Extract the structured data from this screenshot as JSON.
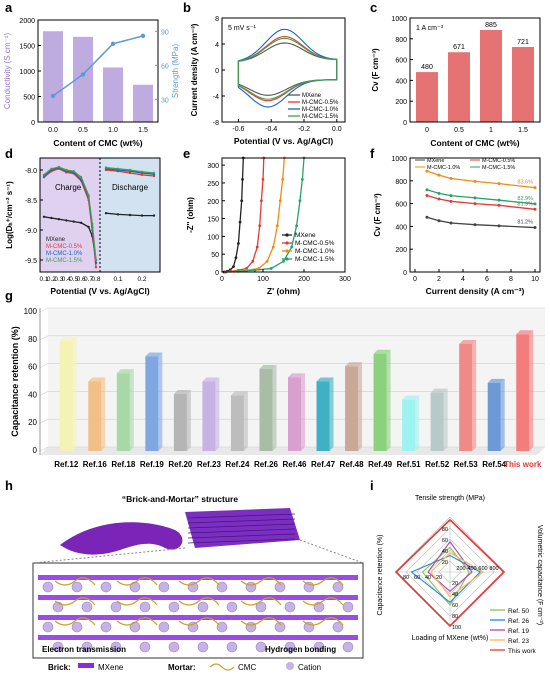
{
  "panel_labels": [
    "a",
    "b",
    "c",
    "d",
    "e",
    "f",
    "g",
    "h",
    "i"
  ],
  "chart_data": [
    {
      "id": "a",
      "type": "bar+line",
      "xlabel": "Content of CMC (wt%)",
      "ylabel": "Conductivity (S cm⁻¹)",
      "y2label": "Strength (MPa)",
      "categories": [
        "0.0",
        "0.5",
        "1.0",
        "1.5"
      ],
      "ylim": [
        0,
        2000
      ],
      "yticks": [
        "0",
        "500",
        "1000",
        "1500",
        "2000"
      ],
      "y2lim": [
        10,
        100
      ],
      "y2ticks": [
        "30",
        "60",
        "90"
      ],
      "series": [
        {
          "kind": "bar",
          "values": [
            1780,
            1670,
            1070,
            730
          ],
          "color": "#b39ddb"
        },
        {
          "kind": "line",
          "values": [
            33,
            52,
            79,
            86
          ],
          "color": "#5b9bd5"
        }
      ]
    },
    {
      "id": "b",
      "type": "line",
      "annotation": "5 mV s⁻¹",
      "xlabel": "Potential (V vs. Ag/AgCl)",
      "ylabel": "Current density (A cm⁻³)",
      "xlim": [
        -0.7,
        0.05
      ],
      "ylim": [
        -8,
        8
      ],
      "xticks": [
        "-0.6",
        "-0.4",
        "-0.2",
        "0.0"
      ],
      "yticks": [
        "-8",
        "-4",
        "0",
        "4",
        "8"
      ],
      "legend": [
        "MXene",
        "M-CMC-0.5%",
        "M-CMC-1.0%",
        "M-CMC-1.5%"
      ],
      "colors": [
        "#555555",
        "#e53935",
        "#1565c0",
        "#43a047"
      ],
      "peak_scale": [
        4.0,
        5.4,
        7.0,
        5.0
      ]
    },
    {
      "id": "c",
      "type": "bar",
      "annotation": "1 A cm⁻³",
      "xlabel": "Content of CMC (wt%)",
      "ylabel": "Cv (F cm⁻³)",
      "categories": [
        "0",
        "0.5",
        "1",
        "1.5"
      ],
      "values": [
        480,
        671,
        885,
        721
      ],
      "labels": [
        "480",
        "671",
        "885",
        "721"
      ],
      "ylim": [
        0,
        1000
      ],
      "yticks": [
        "0",
        "200",
        "400",
        "600",
        "800",
        "1000"
      ],
      "color": "#e57373"
    },
    {
      "id": "d",
      "type": "line",
      "xlabel": "Potential (V vs. Ag/AgCl)",
      "ylabel": "Log(Dₕ⁺/cm⁻² s⁻¹)",
      "ylim": [
        -9.7,
        -7.8
      ],
      "yticks": [
        "-8.0",
        "-8.5",
        "-9.0",
        "-9.5"
      ],
      "charge_xticks": [
        "0.1",
        "0.2",
        "0.3",
        "0.4",
        "0.5",
        "0.6",
        "0.7",
        "0.8"
      ],
      "discharge_xticks": [
        "0.1",
        "0.2"
      ],
      "charge_label": "Charge",
      "discharge_label": "Discharge",
      "legend": [
        "MXene",
        "M-CMC-0.5%",
        "M-CMC-1.0%",
        "M-CMC-1.5%"
      ],
      "colors": [
        "#222222",
        "#e53935",
        "#1565c0",
        "#43a047"
      ],
      "charge_bg": "#e1d1f1",
      "discharge_bg": "#d2e2f1",
      "charge": [
        {
          "x": [
            0.1,
            0.2,
            0.3,
            0.4,
            0.5,
            0.6,
            0.7,
            0.75,
            0.8
          ],
          "y": [
            -8.78,
            -8.8,
            -8.82,
            -8.84,
            -8.86,
            -8.88,
            -8.95,
            -9.1,
            -9.5
          ]
        },
        {
          "x": [
            0.1,
            0.2,
            0.3,
            0.4,
            0.5,
            0.6,
            0.7,
            0.75,
            0.8
          ],
          "y": [
            -8.12,
            -8.02,
            -7.98,
            -8.04,
            -8.06,
            -8.18,
            -8.5,
            -9.0,
            -9.62
          ]
        },
        {
          "x": [
            0.1,
            0.2,
            0.3,
            0.4,
            0.5,
            0.6,
            0.7,
            0.75,
            0.8
          ],
          "y": [
            -8.1,
            -8.0,
            -7.96,
            -8.02,
            -8.04,
            -8.16,
            -8.45,
            -8.95,
            -9.55
          ]
        },
        {
          "x": [
            0.1,
            0.2,
            0.3,
            0.4,
            0.5,
            0.6,
            0.7,
            0.75,
            0.8
          ],
          "y": [
            -8.08,
            -7.98,
            -7.95,
            -8.0,
            -8.02,
            -8.12,
            -8.42,
            -8.9,
            -9.5
          ]
        }
      ],
      "discharge": [
        {
          "x": [
            0.05,
            0.1,
            0.15,
            0.2,
            0.25
          ],
          "y": [
            -8.72,
            -8.74,
            -8.75,
            -8.76,
            -8.76
          ]
        },
        {
          "x": [
            0.05,
            0.1,
            0.15,
            0.2,
            0.25
          ],
          "y": [
            -8.0,
            -8.02,
            -8.05,
            -8.08,
            -8.1
          ]
        },
        {
          "x": [
            0.05,
            0.1,
            0.15,
            0.2,
            0.25
          ],
          "y": [
            -7.98,
            -8.0,
            -8.02,
            -8.05,
            -8.07
          ]
        },
        {
          "x": [
            0.05,
            0.1,
            0.15,
            0.2,
            0.25
          ],
          "y": [
            -7.96,
            -7.98,
            -8.0,
            -8.03,
            -8.05
          ]
        }
      ]
    },
    {
      "id": "e",
      "type": "line",
      "xlabel": "Z' (ohm)",
      "ylabel": "-Z'' (ohm)",
      "xlim": [
        0,
        300
      ],
      "ylim": [
        0,
        320
      ],
      "xticks": [
        "0",
        "100",
        "200",
        "300"
      ],
      "yticks": [
        "0",
        "50",
        "100",
        "150",
        "200",
        "250",
        "300"
      ],
      "legend": [
        "MXene",
        "M-CMC-0.5%",
        "M-CMC-1.0%",
        "M-CMC-1.5%"
      ],
      "colors": [
        "#222222",
        "#e53935",
        "#ef8a17",
        "#26a269"
      ],
      "series": [
        {
          "x": [
            5,
            12,
            20,
            28,
            34,
            40,
            44,
            48,
            50,
            52
          ],
          "y": [
            0,
            2,
            6,
            15,
            40,
            80,
            140,
            200,
            260,
            320
          ]
        },
        {
          "x": [
            8,
            20,
            40,
            60,
            75,
            86,
            92,
            96,
            100,
            102
          ],
          "y": [
            0,
            2,
            5,
            10,
            30,
            70,
            130,
            200,
            260,
            320
          ]
        },
        {
          "x": [
            10,
            30,
            60,
            90,
            110,
            125,
            135,
            142,
            148,
            152
          ],
          "y": [
            0,
            2,
            5,
            10,
            30,
            70,
            130,
            200,
            260,
            320
          ]
        },
        {
          "x": [
            10,
            40,
            80,
            120,
            150,
            170,
            182,
            190,
            196,
            200
          ],
          "y": [
            0,
            2,
            5,
            10,
            30,
            70,
            130,
            200,
            260,
            320
          ]
        }
      ]
    },
    {
      "id": "f",
      "type": "line",
      "xlabel": "Current density (A cm⁻³)",
      "ylabel": "Cv (F cm⁻³)",
      "xlim": [
        0,
        10
      ],
      "ylim": [
        0,
        1000
      ],
      "xticks": [
        "0",
        "2",
        "4",
        "6",
        "8",
        "10"
      ],
      "yticks": [
        "0",
        "200",
        "400",
        "600",
        "800",
        "1000"
      ],
      "legend": [
        "MXene",
        "M-CMC-0.5%",
        "M-CMC-1.0%",
        "M-CMC-1.5%"
      ],
      "colors": [
        "#444444",
        "#e53935",
        "#ef8a17",
        "#26a269"
      ],
      "retention_labels": [
        "81.2%",
        "81.9%",
        "83.6%",
        "82.9%"
      ],
      "series": [
        {
          "x": [
            1,
            2,
            3,
            5,
            7,
            10
          ],
          "y": [
            480,
            450,
            430,
            415,
            405,
            390
          ]
        },
        {
          "x": [
            1,
            2,
            3,
            5,
            7,
            10
          ],
          "y": [
            671,
            640,
            620,
            600,
            585,
            550
          ]
        },
        {
          "x": [
            1,
            2,
            3,
            5,
            7,
            10
          ],
          "y": [
            885,
            850,
            820,
            795,
            775,
            740
          ]
        },
        {
          "x": [
            1,
            2,
            3,
            5,
            7,
            10
          ],
          "y": [
            721,
            690,
            670,
            650,
            630,
            598
          ]
        }
      ]
    },
    {
      "id": "g",
      "type": "bar",
      "ylabel": "Capacitance retention (%)",
      "ylim": [
        0,
        100
      ],
      "yticks": [
        "0",
        "20",
        "40",
        "60",
        "80",
        "100"
      ],
      "categories": [
        "Ref.12",
        "Ref.16",
        "Ref.18",
        "Ref.19",
        "Ref.20",
        "Ref.23",
        "Ref.24",
        "Ref.26",
        "Ref.46",
        "Ref.47",
        "Ref.48",
        "Ref.49",
        "Ref.51",
        "Ref.52",
        "Ref.53",
        "Ref.54",
        "This work"
      ],
      "values": [
        79,
        50,
        56,
        68,
        41,
        50,
        40,
        59,
        53,
        50,
        61,
        70,
        37,
        42,
        77,
        49,
        84
      ],
      "colors": [
        "#f5f3b4",
        "#f2bf86",
        "#a8d8a8",
        "#7fa8e3",
        "#b5b5b5",
        "#c7b2e6",
        "#bdbdbd",
        "#a8bca6",
        "#d9a0cf",
        "#3eb2c2",
        "#c9a898",
        "#8cd17d",
        "#9ef2f0",
        "#b8c9c8",
        "#f08a86",
        "#6b9ad6",
        "#f37d7d"
      ],
      "highlight_label_color": "#e53935"
    },
    {
      "id": "i",
      "type": "radar",
      "axes": [
        "Tensile strength (MPa)",
        "Volumetric capacitance (F cm⁻³)",
        "Loading of MXene (wt%)",
        "Capacitance retention (%)"
      ],
      "axis_ticks": [
        [
          "20",
          "40",
          "60",
          "80"
        ],
        [
          "200",
          "400",
          "600",
          "800"
        ],
        [
          "20",
          "40",
          "60",
          "80",
          "100"
        ],
        [
          "20",
          "40",
          "60",
          "80"
        ]
      ],
      "legend": [
        "Ref. 50",
        "Ref. 26",
        "Ref. 19",
        "Ref. 23",
        "This work"
      ],
      "colors": [
        "#8bc34a",
        "#1e88e5",
        "#ab47bc",
        "#ffb74d",
        "#e53935"
      ]
    }
  ],
  "panel_h": {
    "title": "“Brick-and-Mortar” structure",
    "labels": [
      "Electron transmission",
      "Hydrogen bonding"
    ],
    "legend": [
      "Brick:",
      "MXene",
      "Mortar:",
      "CMC",
      "Cation"
    ]
  }
}
